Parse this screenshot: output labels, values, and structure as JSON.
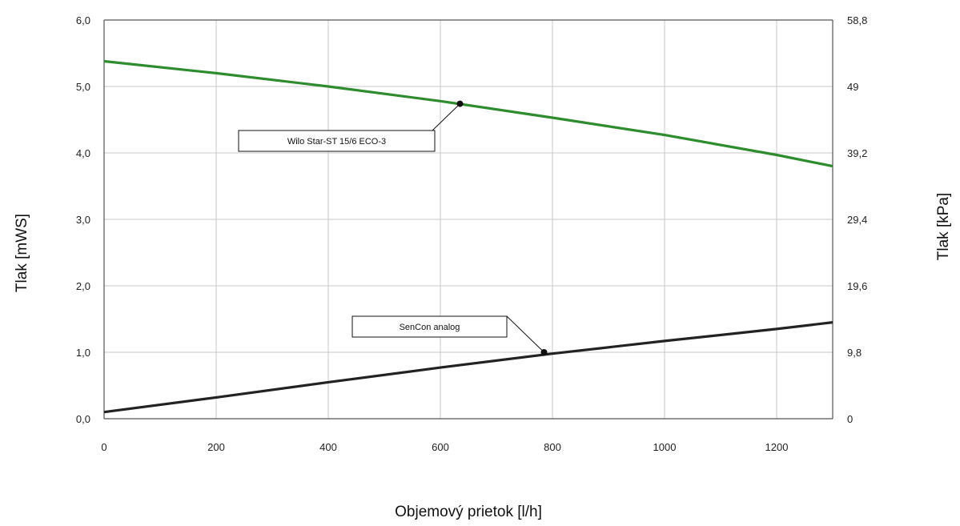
{
  "chart_data": {
    "type": "line",
    "xlabel": "Objemový prietok [l/h]",
    "ylabel": "Tlak [mWS]",
    "y2label": "Tlak [kPa]",
    "xlim": [
      0,
      1300
    ],
    "ylim": [
      0,
      6
    ],
    "x_ticks": [
      "0",
      "200",
      "400",
      "600",
      "800",
      "1000",
      "1200"
    ],
    "y_ticks": [
      "0,0",
      "1,0",
      "2,0",
      "3,0",
      "4,0",
      "5,0",
      "6,0"
    ],
    "y2_ticks": [
      "0",
      "9,8",
      "19,6",
      "29,4",
      "39,2",
      "49",
      "58,8"
    ],
    "grid": true,
    "series": [
      {
        "name": "Wilo Star-ST 15/6 ECO-3",
        "color": "#2e8b2e",
        "x": [
          0,
          200,
          400,
          600,
          800,
          1000,
          1200,
          1300
        ],
        "y": [
          5.38,
          5.2,
          5.0,
          4.78,
          4.53,
          4.27,
          3.97,
          3.8
        ],
        "marker": {
          "x": 635,
          "y": 4.74
        }
      },
      {
        "name": "SenCon analog",
        "color": "#222222",
        "x": [
          0,
          200,
          400,
          600,
          800,
          1000,
          1200,
          1300
        ],
        "y": [
          0.1,
          0.32,
          0.55,
          0.77,
          0.98,
          1.17,
          1.35,
          1.45
        ],
        "marker": {
          "x": 785,
          "y": 1.0
        }
      }
    ]
  }
}
